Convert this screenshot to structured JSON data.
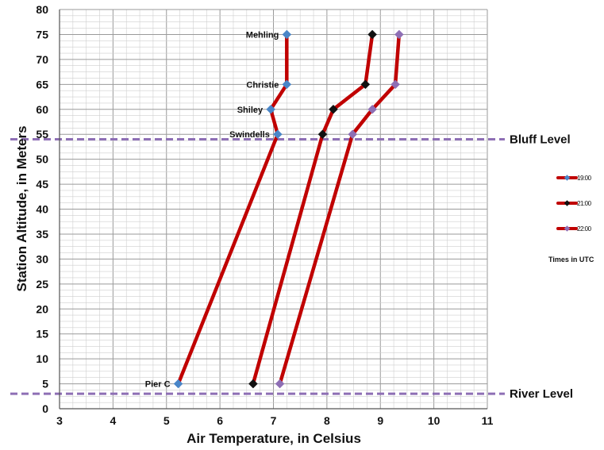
{
  "chart_data": {
    "type": "line",
    "xlabel": "Air Temperature, in Celsius",
    "ylabel": "Station Altitude, in Meters",
    "xlim": [
      3,
      11
    ],
    "ylim": [
      0,
      80
    ],
    "x_ticks": [
      3,
      4,
      5,
      6,
      7,
      8,
      9,
      10,
      11
    ],
    "y_ticks": [
      0,
      5,
      10,
      15,
      20,
      25,
      30,
      35,
      40,
      45,
      50,
      55,
      60,
      65,
      70,
      75,
      80
    ],
    "grid": true,
    "line_color": "#c00000",
    "series": [
      {
        "name": "19:00",
        "marker_color": "#4a86c8",
        "points": [
          {
            "x": 5.22,
            "y": 5
          },
          {
            "x": 7.08,
            "y": 55
          },
          {
            "x": 6.95,
            "y": 60
          },
          {
            "x": 7.25,
            "y": 65
          },
          {
            "x": 7.25,
            "y": 75
          }
        ]
      },
      {
        "name": "21:00",
        "marker_color": "#111111",
        "points": [
          {
            "x": 6.62,
            "y": 5
          },
          {
            "x": 7.92,
            "y": 55
          },
          {
            "x": 8.12,
            "y": 60
          },
          {
            "x": 8.72,
            "y": 65
          },
          {
            "x": 8.85,
            "y": 75
          }
        ]
      },
      {
        "name": "22:00",
        "marker_color": "#8e6fb5",
        "points": [
          {
            "x": 7.12,
            "y": 5
          },
          {
            "x": 8.48,
            "y": 55
          },
          {
            "x": 8.85,
            "y": 60
          },
          {
            "x": 9.28,
            "y": 65
          },
          {
            "x": 9.35,
            "y": 75
          }
        ]
      }
    ],
    "station_labels": [
      {
        "text": "Mehling",
        "x": 7.25,
        "y": 75
      },
      {
        "text": "Christie",
        "x": 7.25,
        "y": 65
      },
      {
        "text": "Shiley",
        "x": 6.95,
        "y": 60
      },
      {
        "text": "Swindells",
        "x": 7.08,
        "y": 55
      },
      {
        "text": "Pier C",
        "x": 5.22,
        "y": 5
      }
    ],
    "reference_lines": [
      {
        "label": "Bluff Level",
        "y": 54,
        "color": "#8e6fb5"
      },
      {
        "label": "River Level",
        "y": 3,
        "color": "#8e6fb5"
      }
    ],
    "legend_position": "right",
    "legend_note": "Times in UTC"
  }
}
